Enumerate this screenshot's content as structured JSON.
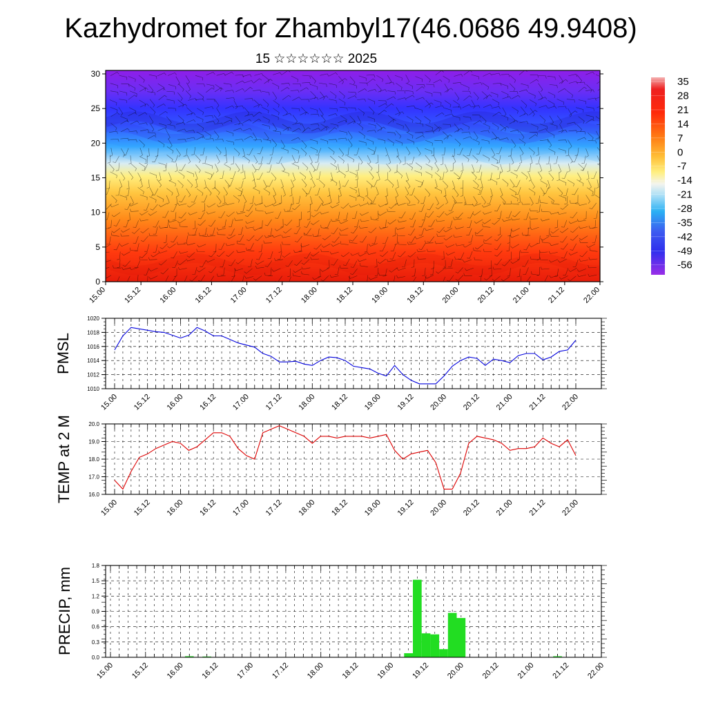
{
  "title": "Kazhydromet for Zhambyl17(46.0686 49.9408)",
  "subtitle": "15 ☆☆☆☆☆☆ 2025",
  "date_ticks": [
    "15.00",
    "15.12",
    "16.00",
    "16.12",
    "17.00",
    "17.12",
    "18.00",
    "18.12",
    "19.00",
    "19.12",
    "20.00",
    "20.12",
    "21.00",
    "21.12",
    "22.00"
  ],
  "chart_data": [
    {
      "type": "heatmap",
      "name": "vertical-section",
      "y_ticks": [
        "0",
        "5",
        "10",
        "15",
        "20",
        "25",
        "30"
      ],
      "ylim": [
        0,
        30.5
      ],
      "colorbar_labels": [
        "35",
        "28",
        "21",
        "14",
        "7",
        "0",
        "-7",
        "-14",
        "-21",
        "-28",
        "-35",
        "-42",
        "-49",
        "-56"
      ],
      "colors": {
        "hot": "#e81c0a",
        "warm": "#ff8c1a",
        "neutral": "#ffef80",
        "cool": "#33a6ff",
        "cold": "#3333ff",
        "coldest": "#8f1ee8"
      }
    },
    {
      "type": "line",
      "name": "pmsl",
      "ylabel": "PMSL",
      "y_ticks": [
        "1020",
        "1018",
        "1016",
        "1014",
        "1012",
        "1010"
      ],
      "ylim": [
        1010,
        1020
      ],
      "color": "#0000dd",
      "x": [
        0,
        1,
        2,
        3,
        4,
        5,
        6,
        7,
        8,
        9,
        10,
        11,
        12,
        13,
        14,
        15,
        16,
        17,
        18,
        19,
        20,
        21,
        22,
        23,
        24,
        25,
        26,
        27,
        28,
        29,
        30,
        31,
        32,
        33,
        34,
        35,
        36,
        37,
        38,
        39,
        40,
        41,
        42,
        43,
        44,
        45,
        46,
        47,
        48,
        49,
        50,
        51,
        52,
        53,
        54,
        55,
        56
      ],
      "values": [
        1015.5,
        1017.5,
        1018.7,
        1018.5,
        1018.3,
        1018.1,
        1018.0,
        1017.6,
        1017.2,
        1017.6,
        1018.7,
        1018.2,
        1017.5,
        1017.5,
        1017.0,
        1016.5,
        1016.2,
        1015.9,
        1015.0,
        1014.6,
        1013.8,
        1013.8,
        1013.9,
        1013.5,
        1013.3,
        1014.0,
        1014.5,
        1014.4,
        1014.0,
        1013.2,
        1013.0,
        1012.8,
        1012.2,
        1011.8,
        1013.3,
        1012.0,
        1011.2,
        1010.7,
        1010.7,
        1010.7,
        1011.8,
        1013.2,
        1014.0,
        1014.5,
        1014.3,
        1013.3,
        1014.2,
        1014.0,
        1013.7,
        1014.7,
        1015.0,
        1015.0,
        1014.1,
        1014.5,
        1015.3,
        1015.5,
        1016.9
      ]
    },
    {
      "type": "line",
      "name": "temp2m",
      "ylabel": "TEMP at 2 M",
      "y_ticks": [
        "20.0",
        "19.0",
        "18.0",
        "17.0",
        "16.0"
      ],
      "ylim": [
        16,
        20
      ],
      "color": "#dd0000",
      "x": [
        0,
        1,
        2,
        3,
        4,
        5,
        6,
        7,
        8,
        9,
        10,
        11,
        12,
        13,
        14,
        15,
        16,
        17,
        18,
        19,
        20,
        21,
        22,
        23,
        24,
        25,
        26,
        27,
        28,
        29,
        30,
        31,
        32,
        33,
        34,
        35,
        36,
        37,
        38,
        39,
        40,
        41,
        42,
        43,
        44,
        45,
        46,
        47,
        48,
        49,
        50,
        51,
        52,
        53,
        54,
        55,
        56
      ],
      "values": [
        16.8,
        16.3,
        17.3,
        18.1,
        18.3,
        18.6,
        18.8,
        19.0,
        18.9,
        18.5,
        18.7,
        19.1,
        19.5,
        19.5,
        19.3,
        18.6,
        18.2,
        18.0,
        19.5,
        19.7,
        19.9,
        19.7,
        19.5,
        19.3,
        18.9,
        19.3,
        19.3,
        19.2,
        19.3,
        19.3,
        19.3,
        19.2,
        19.3,
        19.4,
        18.5,
        18.0,
        18.3,
        18.4,
        18.5,
        17.8,
        16.3,
        16.3,
        17.2,
        18.9,
        19.3,
        19.2,
        19.1,
        18.9,
        18.5,
        18.6,
        18.6,
        18.7,
        19.2,
        18.9,
        18.7,
        19.1,
        18.2
      ]
    },
    {
      "type": "bar",
      "name": "precip",
      "ylabel": "PRECIP, mm",
      "y_ticks": [
        "1.8",
        "1.5",
        "1.2",
        "0.9",
        "0.6",
        "0.3",
        "0.0"
      ],
      "ylim": [
        0,
        1.8
      ],
      "color": "#22dd22",
      "x": [
        9,
        11,
        34,
        35,
        36,
        37,
        38,
        39,
        40,
        51
      ],
      "values": [
        0.02,
        0.015,
        0.08,
        1.52,
        0.47,
        0.45,
        0.16,
        0.87,
        0.77,
        0.02
      ]
    }
  ]
}
